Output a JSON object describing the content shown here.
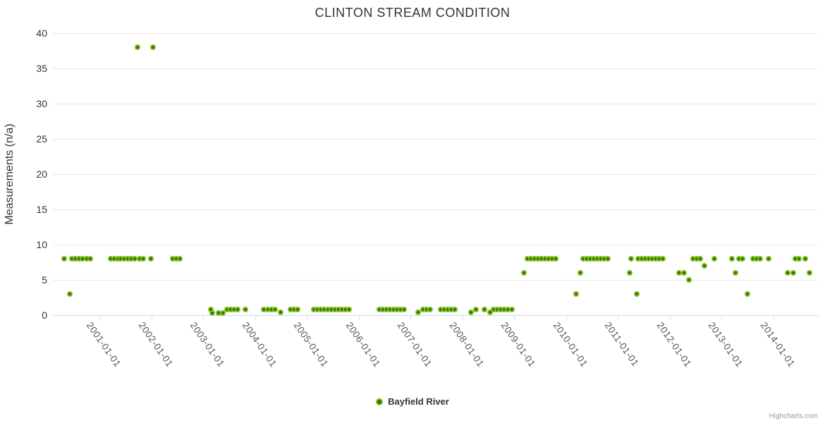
{
  "page": {
    "credits": "Highcharts.com"
  },
  "chart_data": {
    "type": "scatter",
    "title": "CLINTON STREAM CONDITION",
    "xlabel": "",
    "ylabel": "Measurements (n/a)",
    "ylim": [
      0,
      40
    ],
    "y_ticks": [
      0,
      5,
      10,
      15,
      20,
      25,
      30,
      35,
      40
    ],
    "x_tick_labels": [
      "2001-01-01",
      "2002-01-01",
      "2003-01-01",
      "2004-01-01",
      "2005-01-01",
      "2006-01-01",
      "2007-01-01",
      "2008-01-01",
      "2009-01-01",
      "2010-01-01",
      "2011-01-01",
      "2012-01-01",
      "2013-01-01",
      "2014-01-01"
    ],
    "x_range": [
      "2000-02-07",
      "2014-11-11"
    ],
    "grid": "horizontal-only",
    "legend_position": "bottom-center",
    "colors": {
      "marker_line": "#7cc222",
      "marker_fill": "#426b00",
      "grid": "#e6e6e6",
      "axis": "#ccd6eb",
      "title_text": "#333333",
      "ytick_text": "#333333",
      "xtick_text": "#555555",
      "legend_text": "#333333",
      "credits_text": "#999999"
    },
    "series": [
      {
        "name": "Bayfield River",
        "points": [
          [
            "2000-04-25",
            8
          ],
          [
            "2000-06-05",
            3
          ],
          [
            "2000-06-20",
            8
          ],
          [
            "2000-07-15",
            8
          ],
          [
            "2000-08-10",
            8
          ],
          [
            "2000-09-05",
            8
          ],
          [
            "2000-10-01",
            8
          ],
          [
            "2000-10-25",
            8
          ],
          [
            "2001-03-20",
            8
          ],
          [
            "2001-04-15",
            8
          ],
          [
            "2001-05-10",
            8
          ],
          [
            "2001-05-30",
            8
          ],
          [
            "2001-06-25",
            8
          ],
          [
            "2001-07-20",
            8
          ],
          [
            "2001-08-12",
            8
          ],
          [
            "2001-09-05",
            8
          ],
          [
            "2001-09-25",
            38
          ],
          [
            "2001-10-10",
            8
          ],
          [
            "2001-11-03",
            8
          ],
          [
            "2001-12-28",
            8
          ],
          [
            "2002-01-13",
            38
          ],
          [
            "2002-06-01",
            8
          ],
          [
            "2002-06-25",
            8
          ],
          [
            "2002-07-20",
            8
          ],
          [
            "2003-02-25",
            0.8
          ],
          [
            "2003-03-05",
            0.3
          ],
          [
            "2003-04-20",
            0.3
          ],
          [
            "2003-05-18",
            0.3
          ],
          [
            "2003-06-17",
            0.8
          ],
          [
            "2003-07-12",
            0.8
          ],
          [
            "2003-08-06",
            0.8
          ],
          [
            "2003-09-01",
            0.8
          ],
          [
            "2003-10-25",
            0.8
          ],
          [
            "2004-03-05",
            0.8
          ],
          [
            "2004-04-01",
            0.8
          ],
          [
            "2004-04-26",
            0.8
          ],
          [
            "2004-05-21",
            0.8
          ],
          [
            "2004-07-01",
            0.4
          ],
          [
            "2004-09-08",
            0.8
          ],
          [
            "2004-10-01",
            0.8
          ],
          [
            "2004-10-26",
            0.8
          ],
          [
            "2005-02-18",
            0.8
          ],
          [
            "2005-03-15",
            0.8
          ],
          [
            "2005-04-09",
            0.8
          ],
          [
            "2005-05-04",
            0.8
          ],
          [
            "2005-05-29",
            0.8
          ],
          [
            "2005-06-23",
            0.8
          ],
          [
            "2005-07-18",
            0.8
          ],
          [
            "2005-08-12",
            0.8
          ],
          [
            "2005-09-06",
            0.8
          ],
          [
            "2005-10-01",
            0.8
          ],
          [
            "2005-10-26",
            0.8
          ],
          [
            "2006-05-26",
            0.8
          ],
          [
            "2006-06-20",
            0.8
          ],
          [
            "2006-07-15",
            0.8
          ],
          [
            "2006-08-08",
            0.8
          ],
          [
            "2006-09-02",
            0.8
          ],
          [
            "2006-09-27",
            0.8
          ],
          [
            "2006-10-22",
            0.8
          ],
          [
            "2006-11-16",
            0.8
          ],
          [
            "2007-02-25",
            0.4
          ],
          [
            "2007-03-30",
            0.8
          ],
          [
            "2007-04-24",
            0.8
          ],
          [
            "2007-05-19",
            0.8
          ],
          [
            "2007-08-03",
            0.8
          ],
          [
            "2007-08-28",
            0.8
          ],
          [
            "2007-09-22",
            0.8
          ],
          [
            "2007-10-17",
            0.8
          ],
          [
            "2007-11-11",
            0.8
          ],
          [
            "2008-03-03",
            0.4
          ],
          [
            "2008-04-08",
            0.8
          ],
          [
            "2008-06-06",
            0.8
          ],
          [
            "2008-07-15",
            0.4
          ],
          [
            "2008-08-10",
            0.8
          ],
          [
            "2008-09-03",
            0.8
          ],
          [
            "2008-09-28",
            0.8
          ],
          [
            "2008-10-22",
            0.8
          ],
          [
            "2008-11-16",
            0.8
          ],
          [
            "2008-12-15",
            0.8
          ],
          [
            "2009-03-11",
            6
          ],
          [
            "2009-04-05",
            8
          ],
          [
            "2009-04-30",
            8
          ],
          [
            "2009-05-25",
            8
          ],
          [
            "2009-06-19",
            8
          ],
          [
            "2009-07-14",
            8
          ],
          [
            "2009-08-08",
            8
          ],
          [
            "2009-09-02",
            8
          ],
          [
            "2009-09-27",
            8
          ],
          [
            "2009-10-22",
            8
          ],
          [
            "2010-03-14",
            3
          ],
          [
            "2010-04-12",
            6
          ],
          [
            "2010-05-01",
            8
          ],
          [
            "2010-05-26",
            8
          ],
          [
            "2010-06-20",
            8
          ],
          [
            "2010-07-15",
            8
          ],
          [
            "2010-08-09",
            8
          ],
          [
            "2010-09-03",
            8
          ],
          [
            "2010-09-28",
            8
          ],
          [
            "2010-10-23",
            8
          ],
          [
            "2011-03-25",
            6
          ],
          [
            "2011-04-05",
            8
          ],
          [
            "2011-05-15",
            3
          ],
          [
            "2011-05-23",
            8
          ],
          [
            "2011-06-17",
            8
          ],
          [
            "2011-07-12",
            8
          ],
          [
            "2011-08-06",
            8
          ],
          [
            "2011-08-31",
            8
          ],
          [
            "2011-09-25",
            8
          ],
          [
            "2011-10-20",
            8
          ],
          [
            "2011-11-14",
            8
          ],
          [
            "2012-03-08",
            6
          ],
          [
            "2012-04-12",
            6
          ],
          [
            "2012-05-17",
            5
          ],
          [
            "2012-06-16",
            8
          ],
          [
            "2012-07-10",
            8
          ],
          [
            "2012-08-04",
            8
          ],
          [
            "2012-09-01",
            7
          ],
          [
            "2012-11-10",
            8
          ],
          [
            "2013-03-15",
            8
          ],
          [
            "2013-04-10",
            6
          ],
          [
            "2013-05-05",
            8
          ],
          [
            "2013-05-30",
            8
          ],
          [
            "2013-07-02",
            3
          ],
          [
            "2013-08-10",
            8
          ],
          [
            "2013-09-05",
            8
          ],
          [
            "2013-10-01",
            8
          ],
          [
            "2013-11-29",
            8
          ],
          [
            "2014-04-12",
            6
          ],
          [
            "2014-05-22",
            6
          ],
          [
            "2014-06-06",
            8
          ],
          [
            "2014-07-01",
            8
          ],
          [
            "2014-08-14",
            8
          ],
          [
            "2014-09-12",
            6
          ]
        ]
      }
    ]
  }
}
